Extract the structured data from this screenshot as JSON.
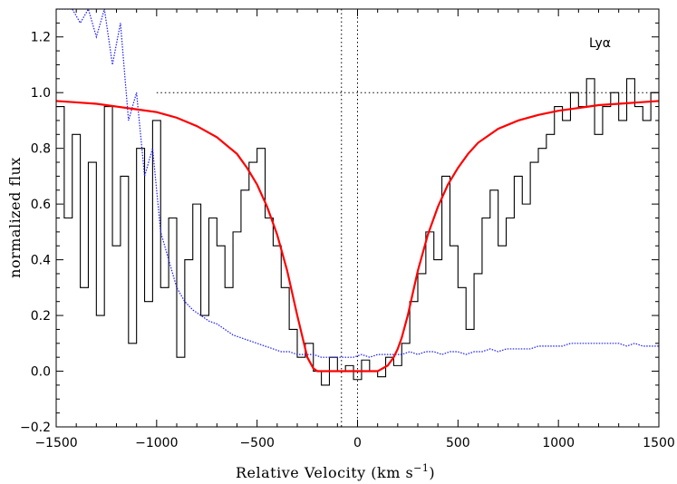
{
  "chart_data": {
    "type": "line",
    "xlabel": "Relative Velocity (km s",
    "xlabel_sup": "−1",
    "xlabel_close": ")",
    "ylabel": "normalized flux",
    "annotation": "Lyα",
    "xlim": [
      -1500,
      1500
    ],
    "ylim": [
      -0.2,
      1.3
    ],
    "x_ticks": [
      -1500,
      -1000,
      -500,
      0,
      500,
      1000,
      1500
    ],
    "x_tick_labels": [
      "−1500",
      "−1000",
      "−500",
      "0",
      "500",
      "1000",
      "1500"
    ],
    "y_ticks": [
      -0.2,
      0.0,
      0.2,
      0.4,
      0.6,
      0.8,
      1.0,
      1.2
    ],
    "y_tick_labels": [
      "−0.2",
      "0.0",
      "0.2",
      "0.4",
      "0.6",
      "0.8",
      "1.0",
      "1.2"
    ],
    "reference_lines": {
      "horizontal_y": 1.0,
      "horizontal_x_start": -1000,
      "vertical_x": [
        -80,
        0
      ]
    },
    "series": [
      {
        "role": "observed flux",
        "color": "#000000",
        "style": "solid-step",
        "x": [
          -1500,
          -1460,
          -1420,
          -1380,
          -1340,
          -1300,
          -1260,
          -1220,
          -1180,
          -1140,
          -1100,
          -1060,
          -1020,
          -980,
          -940,
          -900,
          -860,
          -820,
          -780,
          -740,
          -700,
          -660,
          -620,
          -580,
          -540,
          -500,
          -460,
          -420,
          -380,
          -340,
          -300,
          -260,
          -220,
          -180,
          -140,
          -100,
          -60,
          -20,
          20,
          60,
          100,
          140,
          180,
          220,
          260,
          300,
          340,
          380,
          420,
          460,
          500,
          540,
          580,
          620,
          660,
          700,
          740,
          780,
          820,
          860,
          900,
          940,
          980,
          1020,
          1060,
          1100,
          1140,
          1180,
          1220,
          1260,
          1300,
          1340,
          1380,
          1420,
          1460,
          1500
        ],
        "y": [
          0.95,
          0.55,
          0.85,
          0.3,
          0.75,
          0.2,
          0.95,
          0.45,
          0.7,
          0.1,
          0.8,
          0.25,
          0.9,
          0.3,
          0.55,
          0.05,
          0.4,
          0.6,
          0.2,
          0.55,
          0.45,
          0.3,
          0.5,
          0.65,
          0.75,
          0.8,
          0.55,
          0.45,
          0.3,
          0.15,
          0.05,
          0.1,
          0.0,
          -0.05,
          0.05,
          0.0,
          0.02,
          -0.03,
          0.04,
          0.0,
          -0.02,
          0.05,
          0.02,
          0.1,
          0.25,
          0.35,
          0.5,
          0.4,
          0.7,
          0.45,
          0.3,
          0.15,
          0.35,
          0.55,
          0.65,
          0.45,
          0.55,
          0.7,
          0.6,
          0.75,
          0.8,
          0.85,
          0.95,
          0.9,
          1.0,
          0.95,
          1.05,
          0.85,
          0.95,
          1.0,
          0.9,
          1.05,
          0.95,
          0.9,
          1.0,
          0.85
        ]
      },
      {
        "role": "error spectrum",
        "color": "#1a1aff",
        "style": "dotted",
        "x": [
          -1500,
          -1460,
          -1420,
          -1380,
          -1340,
          -1300,
          -1260,
          -1220,
          -1180,
          -1140,
          -1100,
          -1060,
          -1020,
          -980,
          -940,
          -900,
          -860,
          -820,
          -780,
          -740,
          -700,
          -660,
          -620,
          -580,
          -540,
          -500,
          -460,
          -420,
          -380,
          -340,
          -300,
          -260,
          -220,
          -180,
          -140,
          -100,
          -60,
          -20,
          20,
          60,
          100,
          140,
          180,
          220,
          260,
          300,
          340,
          380,
          420,
          460,
          500,
          540,
          580,
          620,
          660,
          700,
          740,
          780,
          820,
          860,
          900,
          940,
          980,
          1020,
          1060,
          1100,
          1140,
          1180,
          1220,
          1260,
          1300,
          1340,
          1380,
          1420,
          1460,
          1500
        ],
        "y": [
          1.3,
          1.3,
          1.3,
          1.25,
          1.3,
          1.2,
          1.3,
          1.1,
          1.25,
          0.9,
          1.0,
          0.7,
          0.8,
          0.5,
          0.4,
          0.3,
          0.25,
          0.22,
          0.2,
          0.18,
          0.17,
          0.15,
          0.13,
          0.12,
          0.11,
          0.1,
          0.09,
          0.08,
          0.07,
          0.07,
          0.06,
          0.06,
          0.06,
          0.05,
          0.05,
          0.05,
          0.05,
          0.05,
          0.06,
          0.05,
          0.06,
          0.06,
          0.06,
          0.06,
          0.07,
          0.06,
          0.07,
          0.07,
          0.06,
          0.07,
          0.07,
          0.06,
          0.07,
          0.07,
          0.08,
          0.07,
          0.08,
          0.08,
          0.08,
          0.08,
          0.09,
          0.09,
          0.09,
          0.09,
          0.1,
          0.1,
          0.1,
          0.1,
          0.1,
          0.1,
          0.1,
          0.09,
          0.1,
          0.09,
          0.09,
          0.09
        ]
      },
      {
        "role": "absorption profile fit",
        "color": "#ff0000",
        "style": "solid-thick",
        "x": [
          -1500,
          -1400,
          -1300,
          -1200,
          -1100,
          -1000,
          -900,
          -800,
          -700,
          -600,
          -550,
          -500,
          -450,
          -400,
          -350,
          -300,
          -250,
          -220,
          -200,
          -180,
          -150,
          -100,
          -50,
          0,
          50,
          100,
          150,
          180,
          200,
          220,
          250,
          300,
          350,
          400,
          450,
          500,
          550,
          600,
          700,
          800,
          900,
          1000,
          1100,
          1200,
          1300,
          1400,
          1500
        ],
        "y": [
          0.97,
          0.965,
          0.96,
          0.95,
          0.94,
          0.93,
          0.91,
          0.88,
          0.84,
          0.78,
          0.73,
          0.67,
          0.59,
          0.49,
          0.36,
          0.2,
          0.05,
          0.01,
          0.0,
          0.0,
          0.0,
          0.0,
          0.0,
          0.0,
          0.0,
          0.0,
          0.02,
          0.05,
          0.08,
          0.12,
          0.2,
          0.36,
          0.49,
          0.59,
          0.67,
          0.73,
          0.78,
          0.82,
          0.87,
          0.9,
          0.92,
          0.935,
          0.945,
          0.955,
          0.96,
          0.965,
          0.97
        ]
      }
    ]
  }
}
